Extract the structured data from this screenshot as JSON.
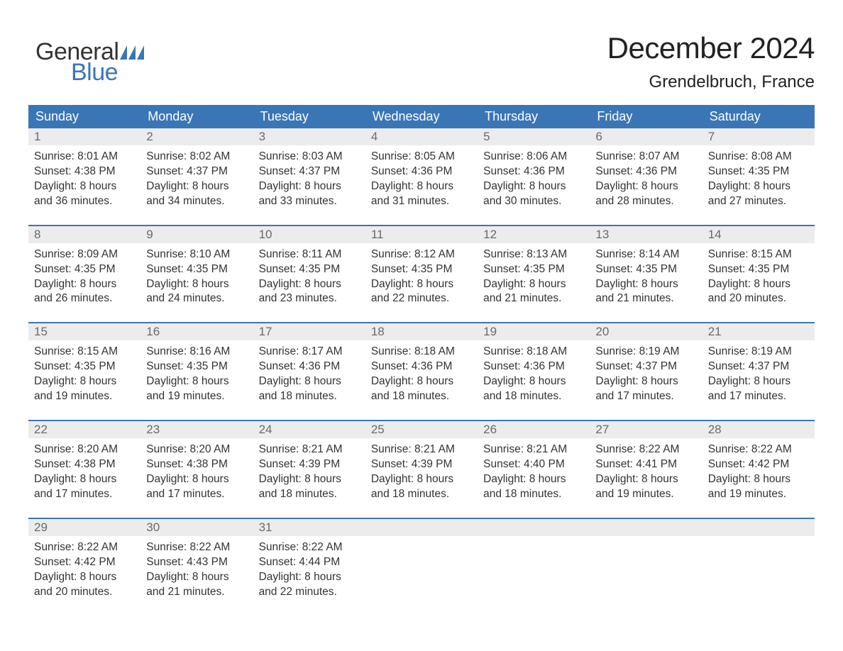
{
  "brand": {
    "part1": "General",
    "part2": "Blue",
    "flag_color": "#3a76b6"
  },
  "title": "December 2024",
  "location": "Grendelbruch, France",
  "calendar": {
    "type": "calendar-grid",
    "columns_count": 7,
    "header_bg": "#3a76b6",
    "header_text_color": "#ffffff",
    "row_divider_color": "#3a76b6",
    "daynum_bg": "#ececec",
    "daynum_color": "#6a6a6a",
    "body_text_color": "#333333",
    "background_color": "#ffffff",
    "header_fontsize": 18,
    "body_fontsize": 15.5,
    "headers": [
      "Sunday",
      "Monday",
      "Tuesday",
      "Wednesday",
      "Thursday",
      "Friday",
      "Saturday"
    ],
    "weeks": [
      [
        {
          "n": "1",
          "sunrise": "Sunrise: 8:01 AM",
          "sunset": "Sunset: 4:38 PM",
          "d1": "Daylight: 8 hours",
          "d2": "and 36 minutes."
        },
        {
          "n": "2",
          "sunrise": "Sunrise: 8:02 AM",
          "sunset": "Sunset: 4:37 PM",
          "d1": "Daylight: 8 hours",
          "d2": "and 34 minutes."
        },
        {
          "n": "3",
          "sunrise": "Sunrise: 8:03 AM",
          "sunset": "Sunset: 4:37 PM",
          "d1": "Daylight: 8 hours",
          "d2": "and 33 minutes."
        },
        {
          "n": "4",
          "sunrise": "Sunrise: 8:05 AM",
          "sunset": "Sunset: 4:36 PM",
          "d1": "Daylight: 8 hours",
          "d2": "and 31 minutes."
        },
        {
          "n": "5",
          "sunrise": "Sunrise: 8:06 AM",
          "sunset": "Sunset: 4:36 PM",
          "d1": "Daylight: 8 hours",
          "d2": "and 30 minutes."
        },
        {
          "n": "6",
          "sunrise": "Sunrise: 8:07 AM",
          "sunset": "Sunset: 4:36 PM",
          "d1": "Daylight: 8 hours",
          "d2": "and 28 minutes."
        },
        {
          "n": "7",
          "sunrise": "Sunrise: 8:08 AM",
          "sunset": "Sunset: 4:35 PM",
          "d1": "Daylight: 8 hours",
          "d2": "and 27 minutes."
        }
      ],
      [
        {
          "n": "8",
          "sunrise": "Sunrise: 8:09 AM",
          "sunset": "Sunset: 4:35 PM",
          "d1": "Daylight: 8 hours",
          "d2": "and 26 minutes."
        },
        {
          "n": "9",
          "sunrise": "Sunrise: 8:10 AM",
          "sunset": "Sunset: 4:35 PM",
          "d1": "Daylight: 8 hours",
          "d2": "and 24 minutes."
        },
        {
          "n": "10",
          "sunrise": "Sunrise: 8:11 AM",
          "sunset": "Sunset: 4:35 PM",
          "d1": "Daylight: 8 hours",
          "d2": "and 23 minutes."
        },
        {
          "n": "11",
          "sunrise": "Sunrise: 8:12 AM",
          "sunset": "Sunset: 4:35 PM",
          "d1": "Daylight: 8 hours",
          "d2": "and 22 minutes."
        },
        {
          "n": "12",
          "sunrise": "Sunrise: 8:13 AM",
          "sunset": "Sunset: 4:35 PM",
          "d1": "Daylight: 8 hours",
          "d2": "and 21 minutes."
        },
        {
          "n": "13",
          "sunrise": "Sunrise: 8:14 AM",
          "sunset": "Sunset: 4:35 PM",
          "d1": "Daylight: 8 hours",
          "d2": "and 21 minutes."
        },
        {
          "n": "14",
          "sunrise": "Sunrise: 8:15 AM",
          "sunset": "Sunset: 4:35 PM",
          "d1": "Daylight: 8 hours",
          "d2": "and 20 minutes."
        }
      ],
      [
        {
          "n": "15",
          "sunrise": "Sunrise: 8:15 AM",
          "sunset": "Sunset: 4:35 PM",
          "d1": "Daylight: 8 hours",
          "d2": "and 19 minutes."
        },
        {
          "n": "16",
          "sunrise": "Sunrise: 8:16 AM",
          "sunset": "Sunset: 4:35 PM",
          "d1": "Daylight: 8 hours",
          "d2": "and 19 minutes."
        },
        {
          "n": "17",
          "sunrise": "Sunrise: 8:17 AM",
          "sunset": "Sunset: 4:36 PM",
          "d1": "Daylight: 8 hours",
          "d2": "and 18 minutes."
        },
        {
          "n": "18",
          "sunrise": "Sunrise: 8:18 AM",
          "sunset": "Sunset: 4:36 PM",
          "d1": "Daylight: 8 hours",
          "d2": "and 18 minutes."
        },
        {
          "n": "19",
          "sunrise": "Sunrise: 8:18 AM",
          "sunset": "Sunset: 4:36 PM",
          "d1": "Daylight: 8 hours",
          "d2": "and 18 minutes."
        },
        {
          "n": "20",
          "sunrise": "Sunrise: 8:19 AM",
          "sunset": "Sunset: 4:37 PM",
          "d1": "Daylight: 8 hours",
          "d2": "and 17 minutes."
        },
        {
          "n": "21",
          "sunrise": "Sunrise: 8:19 AM",
          "sunset": "Sunset: 4:37 PM",
          "d1": "Daylight: 8 hours",
          "d2": "and 17 minutes."
        }
      ],
      [
        {
          "n": "22",
          "sunrise": "Sunrise: 8:20 AM",
          "sunset": "Sunset: 4:38 PM",
          "d1": "Daylight: 8 hours",
          "d2": "and 17 minutes."
        },
        {
          "n": "23",
          "sunrise": "Sunrise: 8:20 AM",
          "sunset": "Sunset: 4:38 PM",
          "d1": "Daylight: 8 hours",
          "d2": "and 17 minutes."
        },
        {
          "n": "24",
          "sunrise": "Sunrise: 8:21 AM",
          "sunset": "Sunset: 4:39 PM",
          "d1": "Daylight: 8 hours",
          "d2": "and 18 minutes."
        },
        {
          "n": "25",
          "sunrise": "Sunrise: 8:21 AM",
          "sunset": "Sunset: 4:39 PM",
          "d1": "Daylight: 8 hours",
          "d2": "and 18 minutes."
        },
        {
          "n": "26",
          "sunrise": "Sunrise: 8:21 AM",
          "sunset": "Sunset: 4:40 PM",
          "d1": "Daylight: 8 hours",
          "d2": "and 18 minutes."
        },
        {
          "n": "27",
          "sunrise": "Sunrise: 8:22 AM",
          "sunset": "Sunset: 4:41 PM",
          "d1": "Daylight: 8 hours",
          "d2": "and 19 minutes."
        },
        {
          "n": "28",
          "sunrise": "Sunrise: 8:22 AM",
          "sunset": "Sunset: 4:42 PM",
          "d1": "Daylight: 8 hours",
          "d2": "and 19 minutes."
        }
      ],
      [
        {
          "n": "29",
          "sunrise": "Sunrise: 8:22 AM",
          "sunset": "Sunset: 4:42 PM",
          "d1": "Daylight: 8 hours",
          "d2": "and 20 minutes."
        },
        {
          "n": "30",
          "sunrise": "Sunrise: 8:22 AM",
          "sunset": "Sunset: 4:43 PM",
          "d1": "Daylight: 8 hours",
          "d2": "and 21 minutes."
        },
        {
          "n": "31",
          "sunrise": "Sunrise: 8:22 AM",
          "sunset": "Sunset: 4:44 PM",
          "d1": "Daylight: 8 hours",
          "d2": "and 22 minutes."
        },
        null,
        null,
        null,
        null
      ]
    ]
  }
}
